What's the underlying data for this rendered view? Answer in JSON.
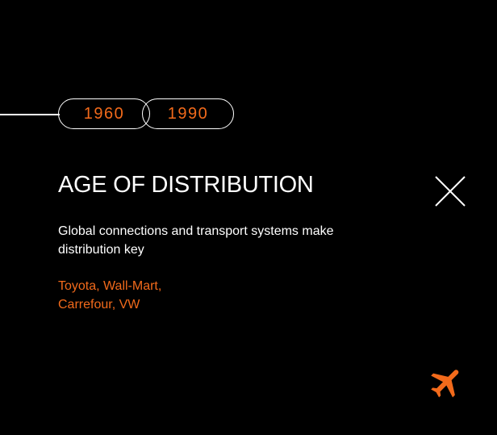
{
  "timeline": {
    "start_year": "1960",
    "end_year": "1990"
  },
  "panel": {
    "title": "AGE OF DISTRIBUTION",
    "description": "Global connections and transport systems make distribution key",
    "companies": [
      "Toyota, Wall-Mart,",
      "Carrefour, VW"
    ],
    "close_icon": "close-icon",
    "era_icon": "airplane-icon"
  },
  "colors": {
    "background": "#000000",
    "accent": "#f26a1b",
    "text": "#ffffff"
  }
}
